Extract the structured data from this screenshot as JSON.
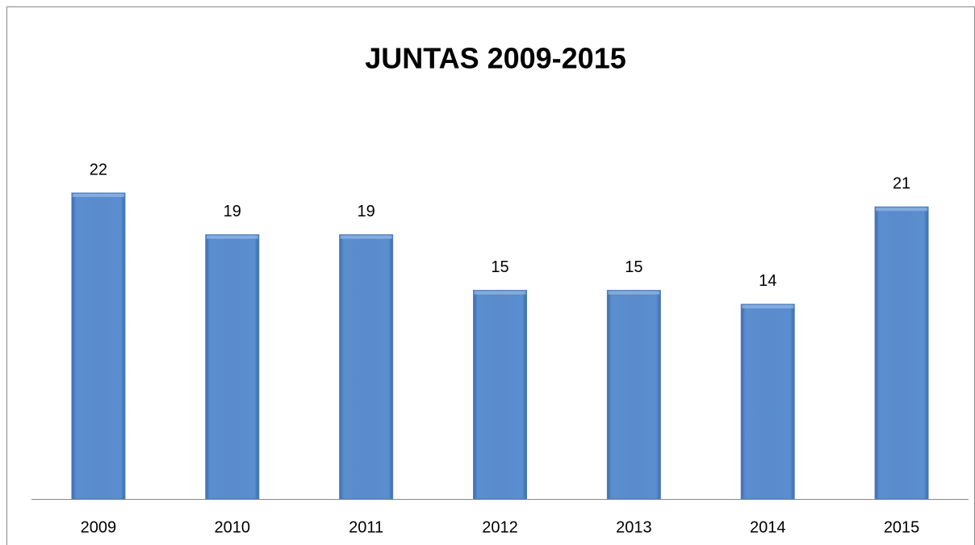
{
  "chart_data": {
    "type": "bar",
    "title": "JUNTAS 2009-2015",
    "categories": [
      "2009",
      "2010",
      "2011",
      "2012",
      "2013",
      "2014",
      "2015"
    ],
    "values": [
      22,
      19,
      19,
      15,
      15,
      14,
      21
    ],
    "color": "#4f81bd",
    "grid": false
  }
}
